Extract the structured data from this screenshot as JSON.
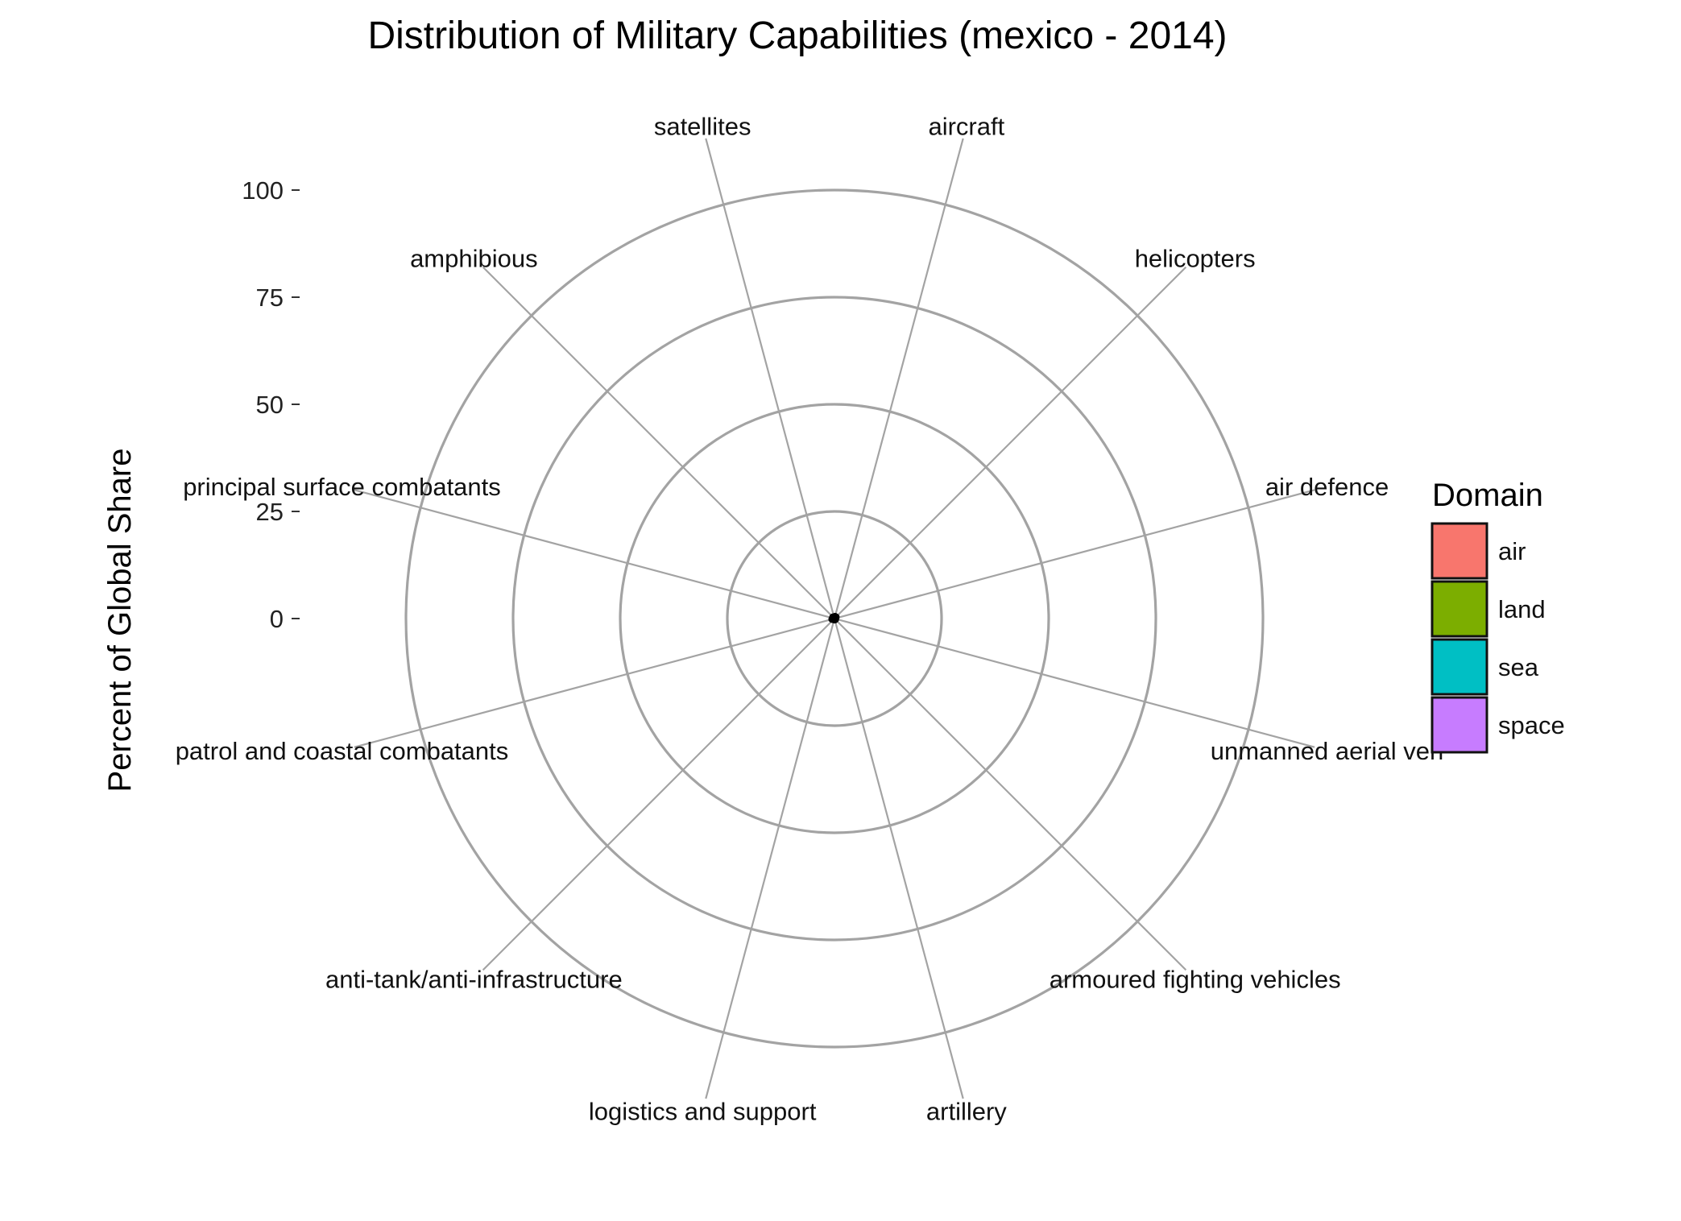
{
  "chart_data": {
    "type": "radar",
    "title": "Distribution of Military Capabilities (mexico - 2014)",
    "xlabel": "",
    "ylabel": "Percent of Global Share",
    "ylim": [
      0,
      100
    ],
    "yticks": [
      0,
      25,
      50,
      75,
      100
    ],
    "grid": true,
    "legend_position": "right",
    "legend_title": "Domain",
    "categories": [
      "satellites",
      "aircraft",
      "helicopters",
      "air defence",
      "unmanned aerial veh",
      "armoured fighting vehicles",
      "artillery",
      "logistics and support",
      "anti-tank/anti-infrastructure",
      "patrol and coastal combatants",
      "principal surface combatants",
      "amphibious"
    ],
    "category_domains": [
      "space",
      "air",
      "air",
      "air",
      "air",
      "land",
      "land",
      "land",
      "land",
      "sea",
      "sea",
      "sea"
    ],
    "values": [
      0,
      0.5,
      0.5,
      0.3,
      0,
      0.3,
      0.3,
      0.3,
      0.2,
      0.6,
      0.4,
      0.5
    ],
    "series": [
      {
        "name": "air",
        "color": "#F8766D"
      },
      {
        "name": "land",
        "color": "#7CAE00"
      },
      {
        "name": "sea",
        "color": "#00BFC4"
      },
      {
        "name": "space",
        "color": "#C77CFF"
      }
    ]
  }
}
